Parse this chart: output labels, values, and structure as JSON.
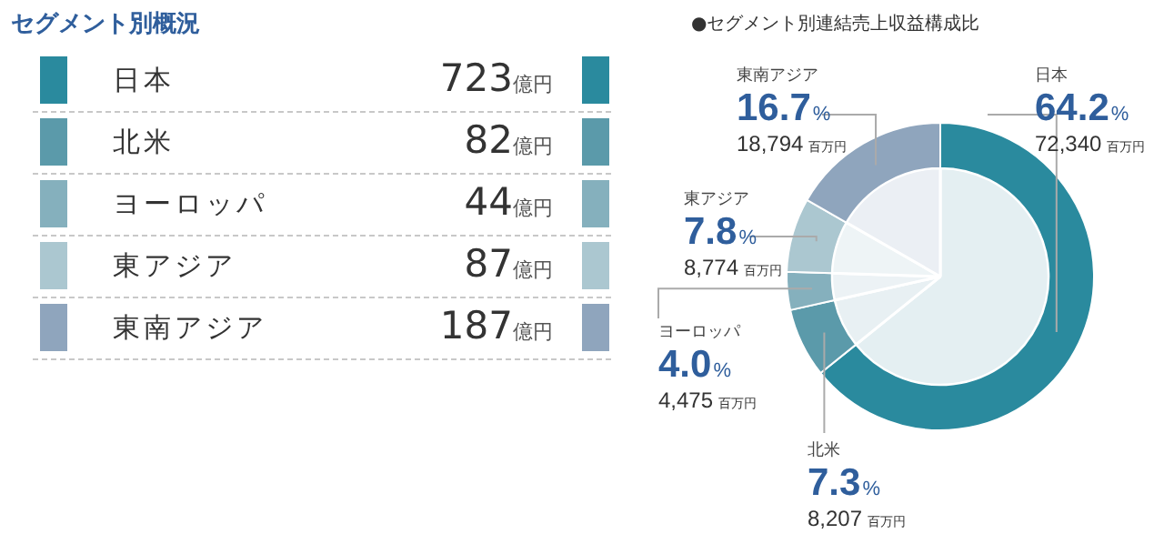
{
  "chart_data": [
    {
      "type": "other",
      "title": "セグメント別概況",
      "categories": [
        "日本",
        "北米",
        "ヨーロッパ",
        "東アジア",
        "東南アジア"
      ],
      "values": [
        723,
        82,
        44,
        87,
        187
      ],
      "value_labels": [
        "723億円",
        "82億円",
        "44億円",
        "87億円",
        "187億円"
      ],
      "colors": [
        "#2a8a9e",
        "#5b9aaa",
        "#85b0bd",
        "#abc7d0",
        "#8fa5bd"
      ]
    },
    {
      "type": "donut",
      "title": "●セグメント別連結売上収益構成比",
      "categories": [
        "日本",
        "北米",
        "ヨーロッパ",
        "東アジア",
        "東南アジア"
      ],
      "series": [
        {
          "values": [
            64.2,
            7.3,
            4.0,
            7.8,
            16.7
          ],
          "colors": [
            "#2a8a9e",
            "#5b9aaa",
            "#85b0bd",
            "#abc7d0",
            "#8fa5bd"
          ]
        },
        {
          "values": [
            64.2,
            7.3,
            4.0,
            7.8,
            16.7
          ],
          "colors": [
            "#e4eff2",
            "#e8f0f3",
            "#ecf2f5",
            "#eef4f6",
            "#ebeff4"
          ]
        }
      ],
      "value_labels": [
        "64.2%\n72,340百万円",
        "7.3%\n8,207百万円",
        "4.0%\n4,475百万円",
        "7.8%\n8,774百万円",
        "16.7%\n18,794百万円"
      ],
      "legend": false
    }
  ]
}
